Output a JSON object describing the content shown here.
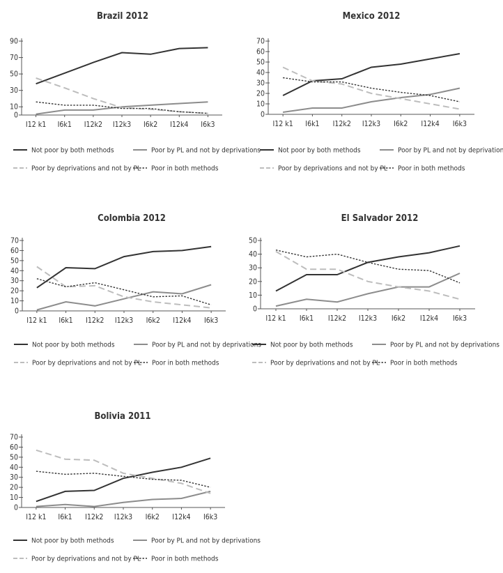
{
  "series_styles": [
    {
      "name": "Not poor by both methods",
      "color": "#333333",
      "dash": ""
    },
    {
      "name": "Poor by PL and not by deprivations",
      "color": "#8c8c8c",
      "dash": ""
    },
    {
      "name": "Poor by deprivations and not by PL",
      "color": "#bdbdbd",
      "dash": "9,5"
    },
    {
      "name": "Poor in both methods",
      "color": "#333333",
      "dash": "2.5,2"
    }
  ],
  "chart_data": [
    {
      "type": "line",
      "title": "Brazil 2012",
      "categories": [
        "I12 k1",
        "I6k1",
        "I12k2",
        "I12k3",
        "I6k2",
        "I12k4",
        "I6k3"
      ],
      "yticks": [
        0,
        10,
        30,
        50,
        70,
        90
      ],
      "ylim": [
        0,
        90
      ],
      "series": [
        {
          "name": "Not poor by both methods",
          "values": [
            38,
            51,
            64,
            76,
            74,
            81,
            82
          ]
        },
        {
          "name": "Poor by PL and not by deprivations",
          "values": [
            1,
            6,
            6,
            10,
            12,
            14,
            16
          ]
        },
        {
          "name": "Poor by deprivations and not by PL",
          "values": [
            45,
            33,
            20,
            9,
            7,
            4,
            2
          ]
        },
        {
          "name": "Poor in both methods",
          "values": [
            16,
            12,
            12,
            8,
            8,
            4,
            2
          ]
        }
      ]
    },
    {
      "type": "line",
      "title": "Mexico 2012",
      "categories": [
        "I12 k1",
        "I6k1",
        "I12k2",
        "I12k3",
        "I6k2",
        "I12k4",
        "I6k3"
      ],
      "yticks": [
        0,
        10,
        20,
        30,
        40,
        50,
        60,
        70
      ],
      "ylim": [
        0,
        70
      ],
      "series": [
        {
          "name": "Not poor by both methods",
          "values": [
            18,
            32,
            34,
            45,
            48,
            53,
            58
          ]
        },
        {
          "name": "Poor by PL and not by deprivations",
          "values": [
            2,
            6,
            6,
            12,
            16,
            19,
            25
          ]
        },
        {
          "name": "Poor by deprivations and not by PL",
          "values": [
            45,
            32,
            29,
            20,
            15,
            10,
            5
          ]
        },
        {
          "name": "Poor in both methods",
          "values": [
            35,
            31,
            31,
            25,
            21,
            18,
            12
          ]
        }
      ]
    },
    {
      "type": "line",
      "title": "Colombia 2012",
      "categories": [
        "I12 k1",
        "I6k1",
        "I12k2",
        "I12k3",
        "I6k2",
        "I12k4",
        "I6k3"
      ],
      "yticks": [
        0,
        10,
        20,
        30,
        40,
        50,
        60,
        70
      ],
      "ylim": [
        0,
        70
      ],
      "series": [
        {
          "name": "Not poor by both methods",
          "values": [
            23,
            43,
            42,
            54,
            59,
            60,
            64
          ]
        },
        {
          "name": "Poor by PL and not by deprivations",
          "values": [
            1,
            9,
            5,
            12,
            19,
            17,
            26
          ]
        },
        {
          "name": "Poor by deprivations and not by PL",
          "values": [
            44,
            24,
            25,
            14,
            9,
            6,
            3
          ]
        },
        {
          "name": "Poor in both methods",
          "values": [
            32,
            24,
            28,
            21,
            14,
            15,
            6
          ]
        }
      ]
    },
    {
      "type": "line",
      "title": "El Salvador 2012",
      "categories": [
        "I12 k1",
        "I6k1",
        "I12k2",
        "I12k3",
        "I6k2",
        "I12k4",
        "I6k3"
      ],
      "yticks": [
        0,
        10,
        20,
        30,
        40,
        50
      ],
      "ylim": [
        0,
        50
      ],
      "series": [
        {
          "name": "Not poor by both methods",
          "values": [
            13,
            25,
            25,
            34,
            38,
            41,
            46
          ]
        },
        {
          "name": "Poor by PL and not by deprivations",
          "values": [
            2,
            7,
            5,
            11,
            16,
            16,
            26
          ]
        },
        {
          "name": "Poor by deprivations and not by PL",
          "values": [
            42,
            29,
            29,
            20,
            16,
            13,
            7
          ]
        },
        {
          "name": "Poor in both methods",
          "values": [
            43,
            38,
            40,
            34,
            29,
            28,
            19
          ]
        }
      ]
    },
    {
      "type": "line",
      "title": "Bolivia 2011",
      "categories": [
        "I12 k1",
        "I6k1",
        "I12k2",
        "I12k3",
        "I6k2",
        "I12k4",
        "I6k3"
      ],
      "yticks": [
        0,
        10,
        20,
        30,
        40,
        50,
        60,
        70
      ],
      "ylim": [
        0,
        70
      ],
      "series": [
        {
          "name": "Not poor by both methods",
          "values": [
            6,
            16,
            17,
            29,
            35,
            40,
            49
          ]
        },
        {
          "name": "Poor by PL and not by deprivations",
          "values": [
            1,
            3,
            1,
            5,
            8,
            9,
            16
          ]
        },
        {
          "name": "Poor by deprivations and not by PL",
          "values": [
            57,
            48,
            47,
            34,
            29,
            24,
            14
          ]
        },
        {
          "name": "Poor in both methods",
          "values": [
            36,
            33,
            34,
            31,
            28,
            27,
            20
          ]
        }
      ]
    }
  ]
}
